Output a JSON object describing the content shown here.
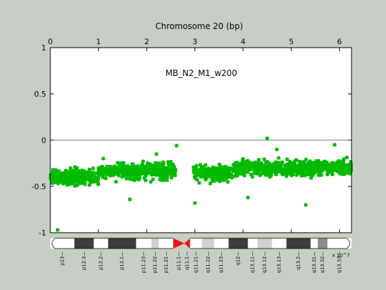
{
  "chart_data": {
    "type": "scatter",
    "title": "Chromosome 20 (bp)",
    "x_axis_scale_label": "x 10^7",
    "series_name": "MB_N2_M1_w200",
    "xlim": [
      0,
      6.25
    ],
    "ylim": [
      -1,
      1
    ],
    "x_ticks": [
      0,
      1,
      2,
      3,
      4,
      5,
      6
    ],
    "y_ticks": [
      1,
      0.5,
      0,
      -0.5,
      -1
    ],
    "y_tick_labels": [
      "1",
      "0.5",
      "0",
      "-0.5",
      "-1"
    ],
    "reference_line_y": 0,
    "marker_color": "#00bb00",
    "centromere_gap": [
      2.65,
      2.95
    ],
    "data_regions": [
      {
        "x_start": 0.0,
        "x_end": 1.0,
        "y_mean": -0.4
      },
      {
        "x_start": 1.0,
        "x_end": 2.6,
        "y_mean": -0.33
      },
      {
        "x_start": 2.97,
        "x_end": 3.8,
        "y_mean": -0.36
      },
      {
        "x_start": 3.8,
        "x_end": 6.25,
        "y_mean": -0.3
      }
    ],
    "outliers": [
      {
        "x": 0.15,
        "y": -0.97
      },
      {
        "x": 1.1,
        "y": -0.2
      },
      {
        "x": 2.2,
        "y": -0.15
      },
      {
        "x": 2.62,
        "y": -0.06
      },
      {
        "x": 3.0,
        "y": -0.68
      },
      {
        "x": 4.5,
        "y": 0.02
      },
      {
        "x": 4.7,
        "y": -0.1
      },
      {
        "x": 5.3,
        "y": -0.7
      },
      {
        "x": 5.9,
        "y": -0.05
      },
      {
        "x": 4.1,
        "y": -0.62
      },
      {
        "x": 1.65,
        "y": -0.64
      }
    ],
    "ideogram": {
      "bands": [
        {
          "name": "p13",
          "start": 0.0,
          "end": 0.5,
          "stain": "gneg"
        },
        {
          "name": "p12.3",
          "start": 0.5,
          "end": 0.9,
          "stain": "gpos100"
        },
        {
          "name": "p12.2",
          "start": 0.9,
          "end": 1.2,
          "stain": "gneg"
        },
        {
          "name": "p12.1",
          "start": 1.2,
          "end": 1.78,
          "stain": "gpos100"
        },
        {
          "name": "p11.23",
          "start": 1.78,
          "end": 2.1,
          "stain": "gneg"
        },
        {
          "name": "p11.22",
          "start": 2.1,
          "end": 2.25,
          "stain": "gpos25"
        },
        {
          "name": "p11.21",
          "start": 2.25,
          "end": 2.55,
          "stain": "gneg"
        },
        {
          "name": "p11.1",
          "start": 2.55,
          "end": 2.78,
          "stain": "acen"
        },
        {
          "name": "q11.1",
          "start": 2.78,
          "end": 2.9,
          "stain": "acen"
        },
        {
          "name": "q11.21",
          "start": 2.9,
          "end": 3.15,
          "stain": "gneg"
        },
        {
          "name": "q11.22",
          "start": 3.15,
          "end": 3.4,
          "stain": "gpos25"
        },
        {
          "name": "q11.23",
          "start": 3.4,
          "end": 3.7,
          "stain": "gneg"
        },
        {
          "name": "q12",
          "start": 3.7,
          "end": 4.1,
          "stain": "gpos100"
        },
        {
          "name": "q13.11",
          "start": 4.1,
          "end": 4.3,
          "stain": "gneg"
        },
        {
          "name": "q13.12",
          "start": 4.3,
          "end": 4.6,
          "stain": "gpos25"
        },
        {
          "name": "q13.13",
          "start": 4.6,
          "end": 4.9,
          "stain": "gneg"
        },
        {
          "name": "q13.2",
          "start": 4.9,
          "end": 5.4,
          "stain": "gpos100"
        },
        {
          "name": "q13.31",
          "start": 5.4,
          "end": 5.55,
          "stain": "gneg"
        },
        {
          "name": "q13.32",
          "start": 5.55,
          "end": 5.75,
          "stain": "gpos50"
        },
        {
          "name": "q13.33",
          "start": 5.75,
          "end": 6.25,
          "stain": "gneg"
        }
      ]
    }
  }
}
